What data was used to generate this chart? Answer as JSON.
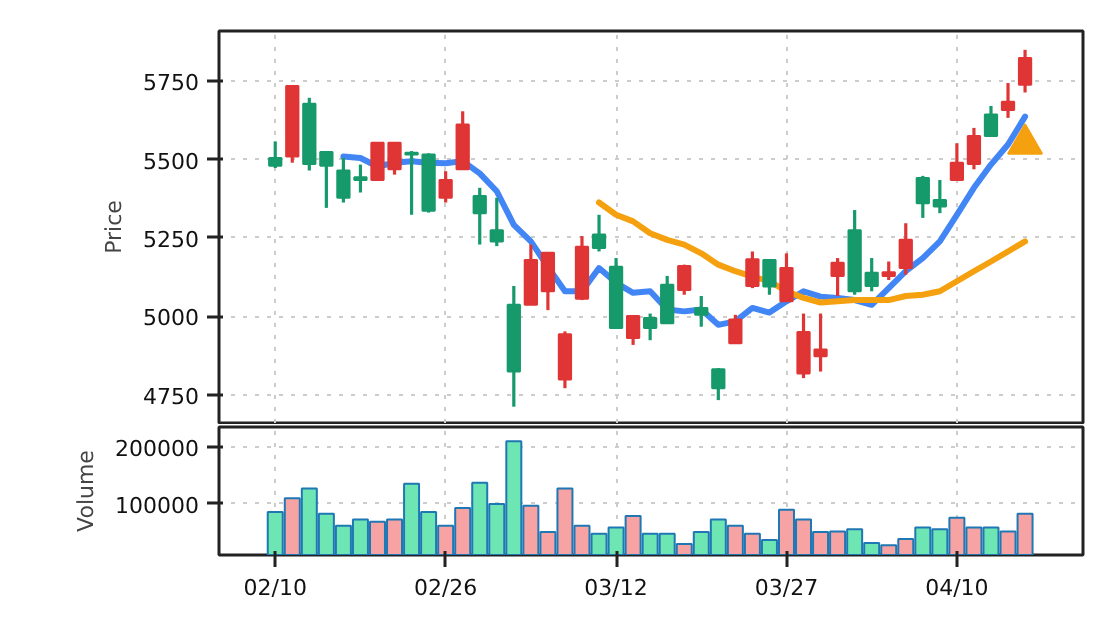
{
  "chart_data": [
    {
      "type": "candlestick",
      "ylabel": "Price",
      "tick_labels": "y",
      "grid": true,
      "categories": [
        null,
        null,
        null,
        null,
        null,
        null,
        null,
        null,
        null,
        null,
        null,
        null,
        null,
        null,
        null,
        null,
        null,
        null,
        null,
        null,
        null,
        null,
        null,
        null,
        null,
        null,
        null,
        null,
        null,
        null,
        null,
        null,
        null,
        null,
        null,
        null,
        null,
        null,
        null,
        null,
        null,
        null,
        null,
        null,
        null
      ],
      "ohlc": [
        [
          5505,
          5558,
          5473,
          5480
        ],
        [
          5510,
          5735,
          5490,
          5735
        ],
        [
          5678,
          5697,
          5465,
          5486
        ],
        [
          5524,
          5524,
          5346,
          5480
        ],
        [
          5465,
          5505,
          5363,
          5378
        ],
        [
          5444,
          5484,
          5395,
          5435
        ],
        [
          5435,
          5554,
          5435,
          5554
        ],
        [
          5469,
          5554,
          5452,
          5554
        ],
        [
          5522,
          5527,
          5324,
          5516
        ],
        [
          5516,
          5520,
          5331,
          5337
        ],
        [
          5378,
          5463,
          5363,
          5435
        ],
        [
          5469,
          5654,
          5469,
          5612
        ],
        [
          5384,
          5410,
          5229,
          5329
        ],
        [
          5275,
          5378,
          5224,
          5239
        ],
        [
          5037,
          5097,
          4712,
          4824
        ],
        [
          5037,
          5229,
          5037,
          5180
        ],
        [
          5080,
          5203,
          5020,
          5203
        ],
        [
          4799,
          4952,
          4771,
          4943
        ],
        [
          5056,
          5256,
          5052,
          5222
        ],
        [
          5261,
          5324,
          5207,
          5218
        ],
        [
          5158,
          5186,
          4963,
          4963
        ],
        [
          4931,
          5001,
          4909,
          5001
        ],
        [
          4995,
          5009,
          4924,
          4963
        ],
        [
          5101,
          5129,
          4978,
          4978
        ],
        [
          5084,
          5165,
          5069,
          5161
        ],
        [
          5027,
          5065,
          4967,
          5005
        ],
        [
          4831,
          4835,
          4733,
          4771
        ],
        [
          4914,
          5005,
          4914,
          4990
        ],
        [
          5097,
          5207,
          5090,
          5182
        ],
        [
          5180,
          5180,
          5069,
          5095
        ],
        [
          5048,
          5201,
          5048,
          5154
        ],
        [
          4818,
          5009,
          4803,
          4950
        ],
        [
          4873,
          5009,
          4824,
          4894
        ],
        [
          5129,
          5186,
          5065,
          5171
        ],
        [
          5275,
          5339,
          5069,
          5080
        ],
        [
          5139,
          5186,
          5080,
          5097
        ],
        [
          5129,
          5175,
          5116,
          5141
        ],
        [
          5154,
          5297,
          5133,
          5244
        ],
        [
          5441,
          5448,
          5314,
          5361
        ],
        [
          5371,
          5435,
          5329,
          5350
        ],
        [
          5435,
          5552,
          5435,
          5490
        ],
        [
          5486,
          5601,
          5469,
          5575
        ],
        [
          5644,
          5671,
          5575,
          5575
        ],
        [
          5658,
          5744,
          5633,
          5684
        ],
        [
          5739,
          5850,
          5714,
          5824
        ]
      ],
      "colors": [
        "#16996b",
        "#e03535",
        "#16996b",
        "#16996b",
        "#16996b",
        "#16996b",
        "#e03535",
        "#e03535",
        "#16996b",
        "#16996b",
        "#e03535",
        "#e03535",
        "#16996b",
        "#16996b",
        "#16996b",
        "#e03535",
        "#e03535",
        "#e03535",
        "#e03535",
        "#16996b",
        "#16996b",
        "#e03535",
        "#16996b",
        "#16996b",
        "#e03535",
        "#16996b",
        "#16996b",
        "#e03535",
        "#e03535",
        "#16996b",
        "#e03535",
        "#e03535",
        "#e03535",
        "#e03535",
        "#16996b",
        "#16996b",
        "#e03535",
        "#e03535",
        "#16996b",
        "#16996b",
        "#e03535",
        "#e03535",
        "#16996b",
        "#e03535",
        "#e03535"
      ],
      "series": [
        {
          "type": "line",
          "color": "#4285f4",
          "values": [
            null,
            null,
            null,
            null,
            5510,
            5505,
            5478,
            5490,
            5495,
            5490,
            5488,
            5495,
            5456,
            5399,
            5292,
            5239,
            5158,
            5080,
            5080,
            5154,
            5107,
            5075,
            5080,
            5022,
            5016,
            5022,
            4973,
            4984,
            5027,
            5012,
            5048,
            5080,
            5063,
            5059,
            5052,
            5037,
            5090,
            5144,
            5186,
            5239,
            5324,
            5410,
            5484,
            5548,
            5637
          ]
        },
        {
          "type": "line",
          "color": "#f5a00f",
          "values": [
            null,
            null,
            null,
            null,
            null,
            null,
            null,
            null,
            null,
            null,
            null,
            null,
            null,
            null,
            null,
            null,
            null,
            null,
            null,
            5363,
            5324,
            5303,
            5265,
            5244,
            5229,
            5201,
            5165,
            5144,
            5127,
            5112,
            5080,
            5059,
            5044,
            5048,
            5052,
            5052,
            5052,
            5065,
            5069,
            5080,
            5112,
            5144,
            5175,
            5207,
            5239
          ]
        },
        {
          "type": "scatter",
          "marker": "triangle",
          "color": "#f5a00f",
          "values": [
            null,
            null,
            null,
            null,
            null,
            null,
            null,
            null,
            null,
            null,
            null,
            null,
            null,
            null,
            null,
            null,
            null,
            null,
            null,
            null,
            null,
            null,
            null,
            null,
            null,
            null,
            null,
            null,
            null,
            null,
            null,
            null,
            null,
            null,
            null,
            null,
            null,
            null,
            null,
            null,
            null,
            null,
            null,
            null,
            5550
          ]
        }
      ],
      "ylim": [
        4660,
        5910
      ],
      "yticks": [
        4750,
        5000,
        5250,
        5500,
        5750
      ]
    },
    {
      "type": "bar",
      "ylabel": "Volume",
      "grid": true,
      "categories": [
        "02/10",
        null,
        null,
        null,
        null,
        null,
        null,
        null,
        null,
        null,
        "02/26",
        null,
        null,
        null,
        null,
        null,
        null,
        null,
        null,
        null,
        "03/12",
        null,
        null,
        null,
        null,
        null,
        null,
        null,
        null,
        null,
        "03/27",
        null,
        null,
        null,
        null,
        null,
        null,
        null,
        null,
        null,
        "04/10",
        null,
        null,
        null,
        null
      ],
      "values": [
        86000,
        110000,
        127000,
        83000,
        62000,
        73000,
        69000,
        73000,
        135000,
        86000,
        62000,
        93000,
        137000,
        100000,
        209000,
        97000,
        51000,
        127000,
        62000,
        48000,
        59000,
        79000,
        48000,
        48000,
        30000,
        51000,
        73000,
        62000,
        48000,
        37000,
        90000,
        73000,
        51000,
        52000,
        56000,
        32000,
        28000,
        39000,
        59000,
        56000,
        76000,
        59000,
        59000,
        52000,
        83000
      ],
      "colors": [
        "#6ee6b4",
        "#f7a3a3",
        "#6ee6b4",
        "#6ee6b4",
        "#6ee6b4",
        "#6ee6b4",
        "#f7a3a3",
        "#f7a3a3",
        "#6ee6b4",
        "#6ee6b4",
        "#f7a3a3",
        "#f7a3a3",
        "#6ee6b4",
        "#6ee6b4",
        "#6ee6b4",
        "#f7a3a3",
        "#f7a3a3",
        "#f7a3a3",
        "#f7a3a3",
        "#6ee6b4",
        "#6ee6b4",
        "#f7a3a3",
        "#6ee6b4",
        "#6ee6b4",
        "#f7a3a3",
        "#6ee6b4",
        "#6ee6b4",
        "#f7a3a3",
        "#f7a3a3",
        "#6ee6b4",
        "#f7a3a3",
        "#f7a3a3",
        "#f7a3a3",
        "#f7a3a3",
        "#6ee6b4",
        "#6ee6b4",
        "#f7a3a3",
        "#f7a3a3",
        "#6ee6b4",
        "#6ee6b4",
        "#f7a3a3",
        "#f7a3a3",
        "#6ee6b4",
        "#f7a3a3",
        "#f7a3a3"
      ],
      "ylim": [
        11000,
        234000
      ],
      "yticks": [
        100000,
        200000
      ]
    }
  ]
}
